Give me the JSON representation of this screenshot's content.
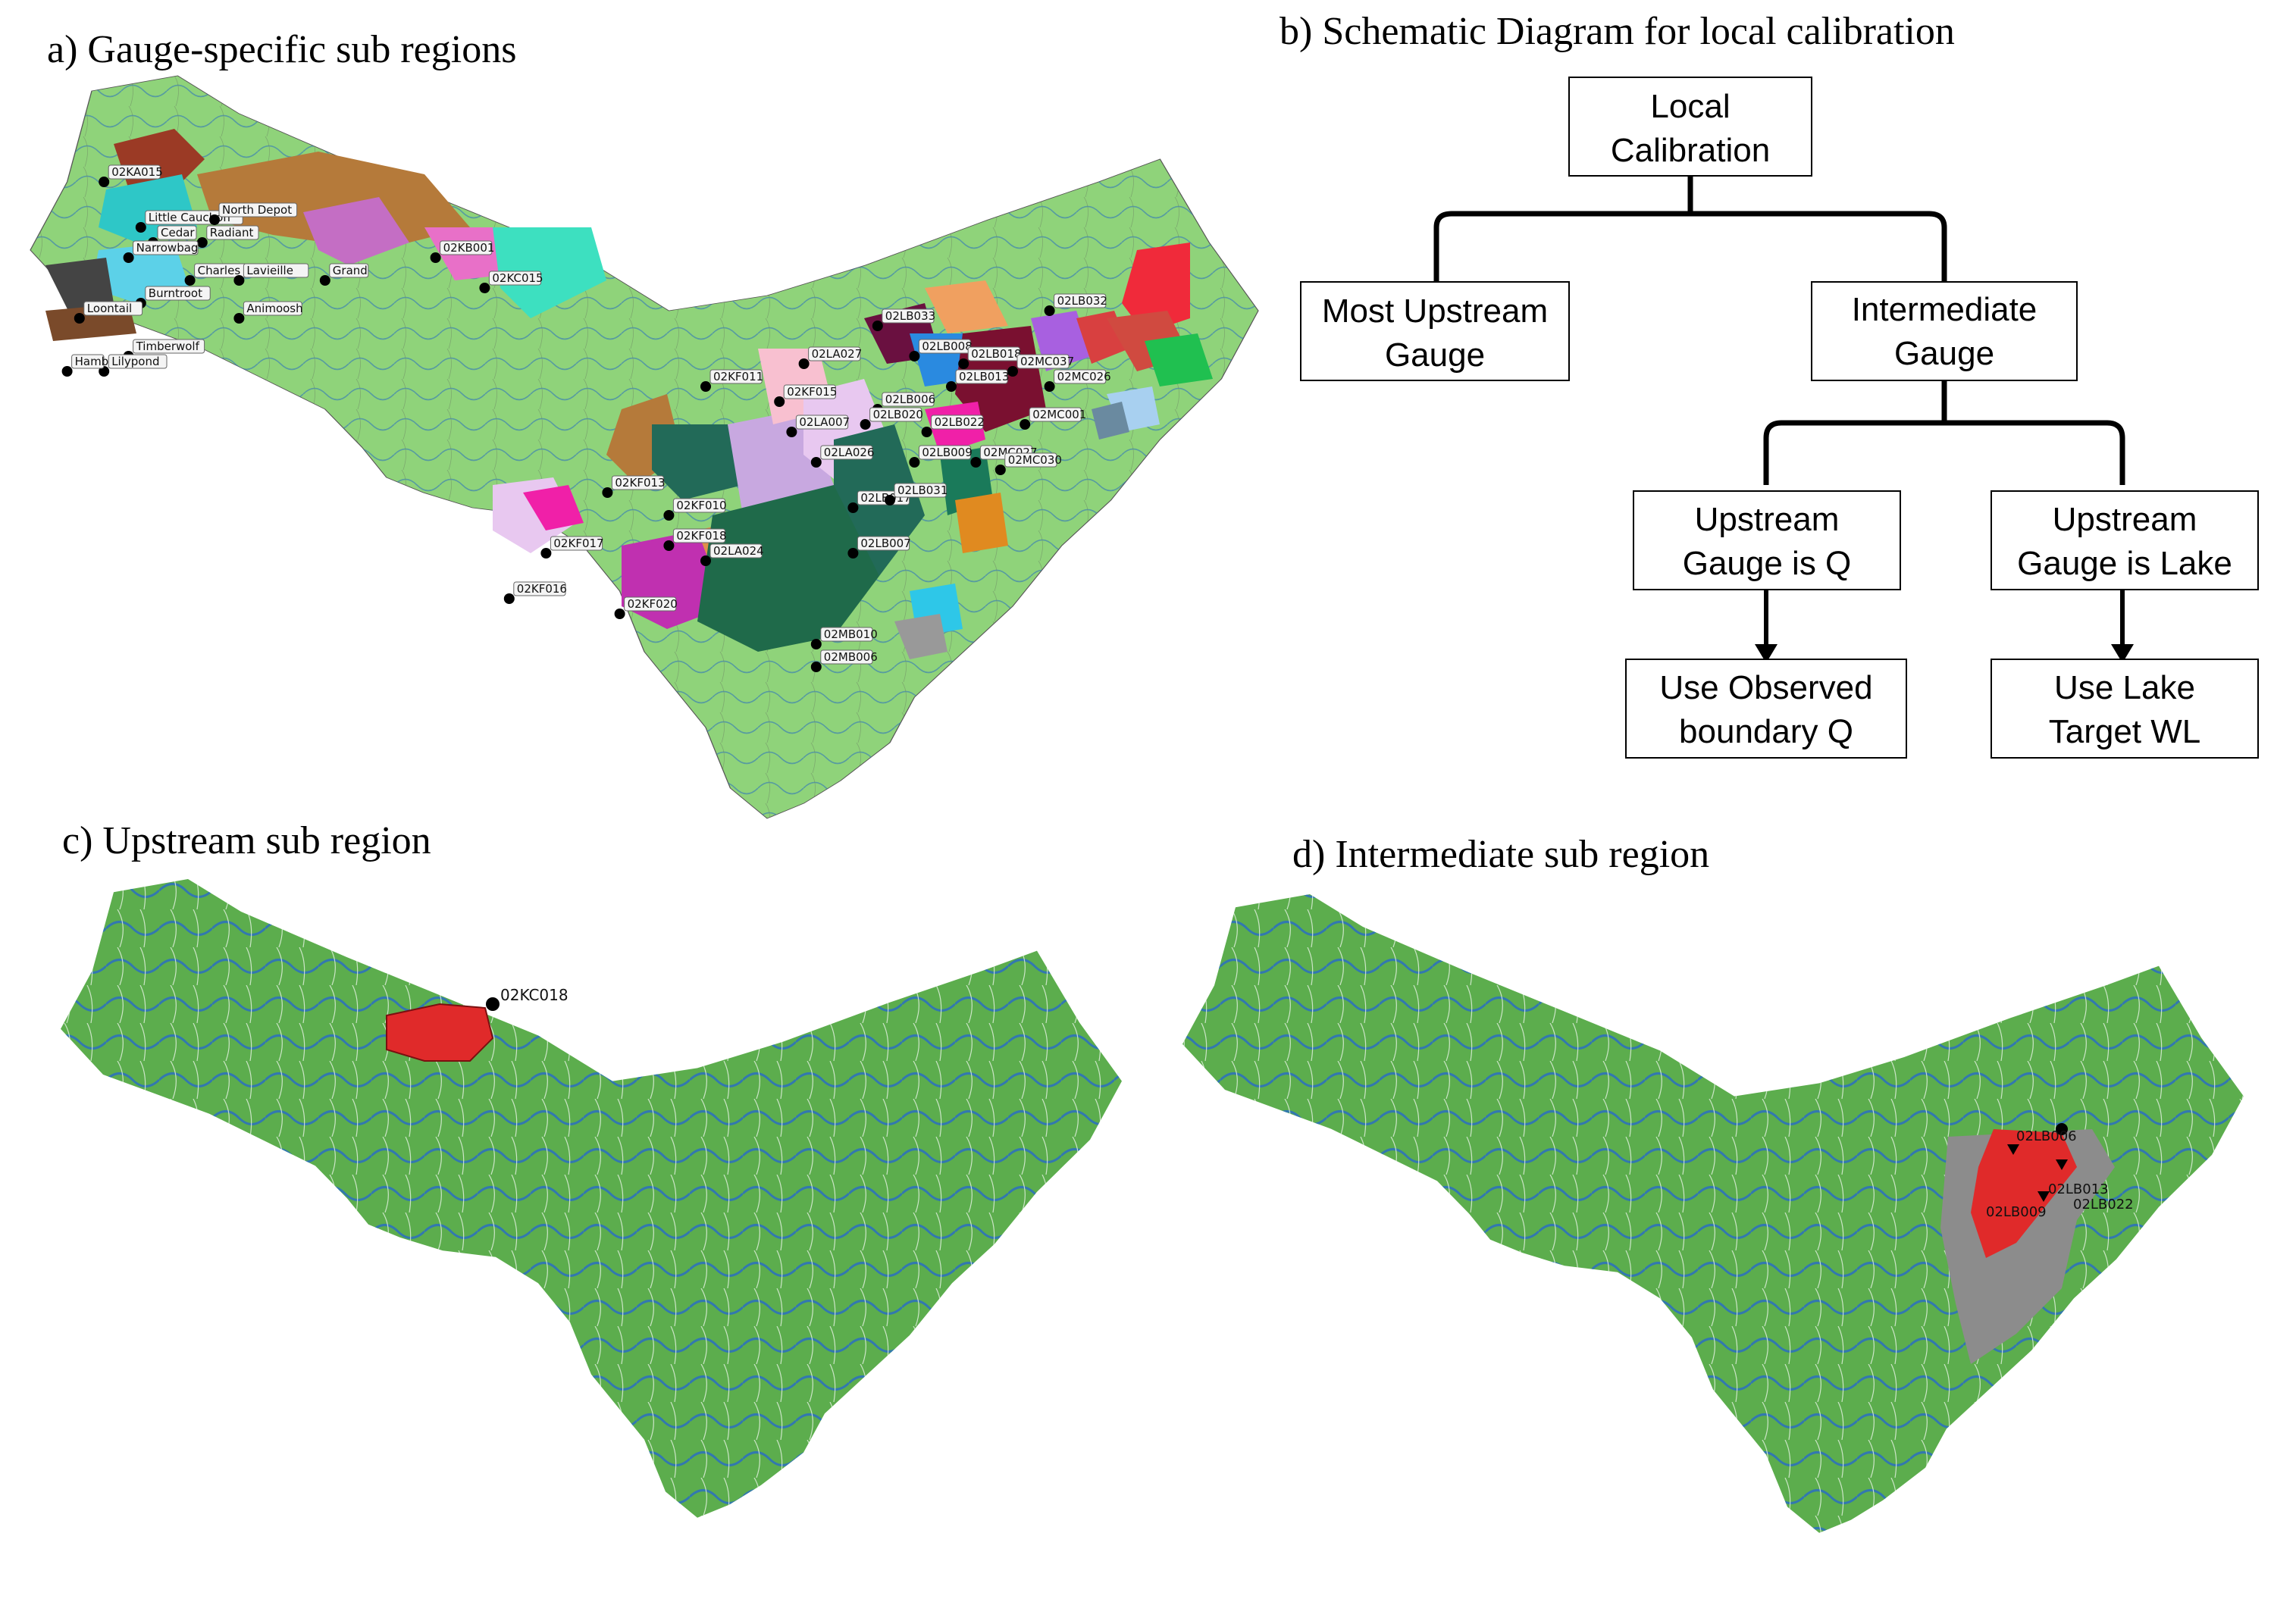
{
  "panels": {
    "a": {
      "title": "a) Gauge-specific sub regions"
    },
    "b": {
      "title": "b) Schematic Diagram for local calibration"
    },
    "c": {
      "title": "c) Upstream sub region"
    },
    "d": {
      "title": "d) Intermediate sub region"
    }
  },
  "colors": {
    "basin": "#8fd37a",
    "basin_dark": "#5cad4d",
    "river": "#2a6fc0",
    "highlight": "#e02a2a",
    "gray": "#8c8c8c"
  },
  "gauges_a": [
    {
      "id": "02KA015",
      "lx": 0.06,
      "ly": 0.14
    },
    {
      "id": "Little Cauchon",
      "lx": 0.09,
      "ly": 0.2
    },
    {
      "id": "North Depot",
      "lx": 0.15,
      "ly": 0.19
    },
    {
      "id": "Cedar",
      "lx": 0.1,
      "ly": 0.22
    },
    {
      "id": "Radiant",
      "lx": 0.14,
      "ly": 0.22
    },
    {
      "id": "Narrowbag",
      "lx": 0.08,
      "ly": 0.24
    },
    {
      "id": "Charles",
      "lx": 0.13,
      "ly": 0.27
    },
    {
      "id": "Lavieille",
      "lx": 0.17,
      "ly": 0.27
    },
    {
      "id": "Burntroot",
      "lx": 0.09,
      "ly": 0.3
    },
    {
      "id": "Loontail",
      "lx": 0.04,
      "ly": 0.32
    },
    {
      "id": "Animoosh",
      "lx": 0.17,
      "ly": 0.32
    },
    {
      "id": "Grand",
      "lx": 0.24,
      "ly": 0.27
    },
    {
      "id": "Timberwolf",
      "lx": 0.08,
      "ly": 0.37
    },
    {
      "id": "Lilypond",
      "lx": 0.06,
      "ly": 0.39
    },
    {
      "id": "Hamb",
      "lx": 0.03,
      "ly": 0.39
    },
    {
      "id": "02KB001",
      "lx": 0.33,
      "ly": 0.24
    },
    {
      "id": "02KC015",
      "lx": 0.37,
      "ly": 0.28
    },
    {
      "id": "02KF011",
      "lx": 0.55,
      "ly": 0.41
    },
    {
      "id": "02KF013",
      "lx": 0.47,
      "ly": 0.55
    },
    {
      "id": "02KF010",
      "lx": 0.52,
      "ly": 0.58
    },
    {
      "id": "02KF018",
      "lx": 0.52,
      "ly": 0.62
    },
    {
      "id": "02LA024",
      "lx": 0.55,
      "ly": 0.64
    },
    {
      "id": "02KF017",
      "lx": 0.42,
      "ly": 0.63
    },
    {
      "id": "02KF016",
      "lx": 0.39,
      "ly": 0.69
    },
    {
      "id": "02KF020",
      "lx": 0.48,
      "ly": 0.71
    },
    {
      "id": "02LA027",
      "lx": 0.63,
      "ly": 0.38
    },
    {
      "id": "02KF015",
      "lx": 0.61,
      "ly": 0.43
    },
    {
      "id": "02LA007",
      "lx": 0.62,
      "ly": 0.47
    },
    {
      "id": "02LA026",
      "lx": 0.64,
      "ly": 0.51
    },
    {
      "id": "02LB033",
      "lx": 0.69,
      "ly": 0.33
    },
    {
      "id": "02LB008",
      "lx": 0.72,
      "ly": 0.37
    },
    {
      "id": "02LB018",
      "lx": 0.76,
      "ly": 0.38
    },
    {
      "id": "02LB013",
      "lx": 0.75,
      "ly": 0.41
    },
    {
      "id": "02LB006",
      "lx": 0.69,
      "ly": 0.44
    },
    {
      "id": "02LB020",
      "lx": 0.68,
      "ly": 0.46
    },
    {
      "id": "02LB022",
      "lx": 0.73,
      "ly": 0.47
    },
    {
      "id": "02LB009",
      "lx": 0.72,
      "ly": 0.51
    },
    {
      "id": "02LB017",
      "lx": 0.67,
      "ly": 0.57
    },
    {
      "id": "02LB031",
      "lx": 0.7,
      "ly": 0.56
    },
    {
      "id": "02LB007",
      "lx": 0.67,
      "ly": 0.63
    },
    {
      "id": "02LB032",
      "lx": 0.83,
      "ly": 0.31
    },
    {
      "id": "02MC037",
      "lx": 0.8,
      "ly": 0.39
    },
    {
      "id": "02MC026",
      "lx": 0.83,
      "ly": 0.41
    },
    {
      "id": "02MC001",
      "lx": 0.81,
      "ly": 0.46
    },
    {
      "id": "02MC027",
      "lx": 0.77,
      "ly": 0.51
    },
    {
      "id": "02MC030",
      "lx": 0.79,
      "ly": 0.52
    },
    {
      "id": "02MB010",
      "lx": 0.64,
      "ly": 0.75
    },
    {
      "id": "02MB006",
      "lx": 0.64,
      "ly": 0.78
    }
  ],
  "flowchart": {
    "root": "Local\nCalibration",
    "left": "Most Upstream\nGauge",
    "right": "Intermediate\nGauge",
    "ruq": "Upstream\nGauge is Q",
    "rul": "Upstream\nGauge is Lake",
    "obs": "Use Observed\nboundary Q",
    "lake": "Use Lake\nTarget WL"
  },
  "panel_c": {
    "gauge": "02KC018"
  },
  "panel_d": {
    "gauges": [
      "02LB006",
      "02LB013",
      "02LB009",
      "02LB022"
    ]
  }
}
